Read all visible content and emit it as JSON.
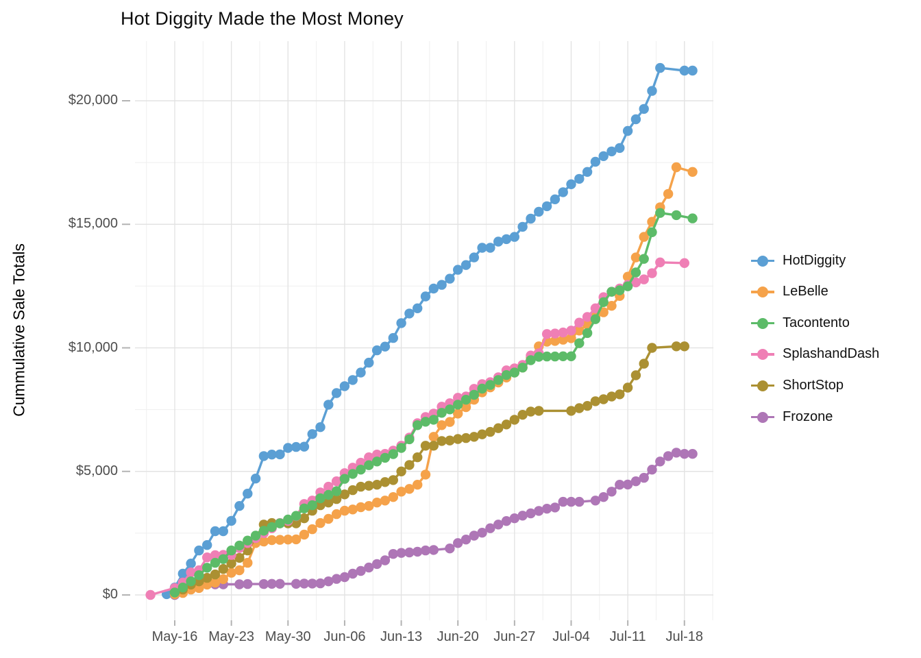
{
  "title": "Hot Diggity Made the Most Money",
  "y_axis": {
    "label": "Cummulative Sale Totals",
    "ticks": [
      {
        "label": "$0",
        "value": 0
      },
      {
        "label": "$5,000",
        "value": 5000
      },
      {
        "label": "$10,000",
        "value": 10000
      },
      {
        "label": "$15,000",
        "value": 15000
      },
      {
        "label": "$20,000",
        "value": 20000
      }
    ],
    "minor_values": [
      2500,
      7500,
      12500,
      17500
    ]
  },
  "x_axis": {
    "ticks": [
      {
        "label": "May-16",
        "day": 3
      },
      {
        "label": "May-23",
        "day": 10
      },
      {
        "label": "May-30",
        "day": 17
      },
      {
        "label": "Jun-06",
        "day": 24
      },
      {
        "label": "Jun-13",
        "day": 31
      },
      {
        "label": "Jun-20",
        "day": 38
      },
      {
        "label": "Jun-27",
        "day": 45
      },
      {
        "label": "Jul-04",
        "day": 52
      },
      {
        "label": "Jul-11",
        "day": 59
      },
      {
        "label": "Jul-18",
        "day": 66
      }
    ]
  },
  "chart_data": {
    "type": "line",
    "title": "Hot Diggity Made the Most Money",
    "xlabel": "",
    "ylabel": "Cummulative Sale Totals",
    "ylim": [
      0,
      21500
    ],
    "grid": true,
    "legend_position": "right",
    "date_labels": [
      "May-13",
      "May-14",
      "May-15",
      "May-16",
      "May-17",
      "May-18",
      "May-19",
      "May-20",
      "May-21",
      "May-22",
      "May-23",
      "May-24",
      "May-25",
      "May-26",
      "May-27",
      "May-28",
      "May-29",
      "May-30",
      "May-31",
      "Jun-01",
      "Jun-02",
      "Jun-03",
      "Jun-04",
      "Jun-05",
      "Jun-06",
      "Jun-07",
      "Jun-08",
      "Jun-09",
      "Jun-10",
      "Jun-11",
      "Jun-12",
      "Jun-13",
      "Jun-14",
      "Jun-15",
      "Jun-16",
      "Jun-17",
      "Jun-18",
      "Jun-19",
      "Jun-20",
      "Jun-21",
      "Jun-22",
      "Jun-23",
      "Jun-24",
      "Jun-25",
      "Jun-26",
      "Jun-27",
      "Jun-28",
      "Jun-29",
      "Jun-30",
      "Jul-01",
      "Jul-02",
      "Jul-03",
      "Jul-04",
      "Jul-05",
      "Jul-06",
      "Jul-07",
      "Jul-08",
      "Jul-09",
      "Jul-10",
      "Jul-11",
      "Jul-12",
      "Jul-13",
      "Jul-14",
      "Jul-15",
      "Jul-16",
      "Jul-17",
      "Jul-18",
      "Jul-19"
    ],
    "draw_order": [
      "Frozone",
      "HotDiggity",
      "LeBelle",
      "ShortStop",
      "SplashandDash",
      "Tacontento"
    ],
    "series": [
      {
        "name": "HotDiggity",
        "color": "#5B9FD4",
        "values": [
          null,
          null,
          30,
          300,
          860,
          1270,
          1800,
          2020,
          2580,
          2580,
          3000,
          3600,
          4100,
          4710,
          5620,
          5680,
          5690,
          5950,
          5990,
          6000,
          6510,
          6790,
          7700,
          8170,
          8450,
          8700,
          9000,
          9400,
          9900,
          10050,
          10400,
          11000,
          11390,
          11600,
          12080,
          12400,
          12550,
          12800,
          13160,
          13350,
          13660,
          14050,
          14050,
          14300,
          14400,
          14490,
          14900,
          15230,
          15510,
          15730,
          16010,
          16300,
          16620,
          16840,
          17120,
          17530,
          17760,
          17950,
          18090,
          18780,
          19250,
          19670,
          20400,
          21330,
          null,
          null,
          21220,
          21220
        ]
      },
      {
        "name": "LeBelle",
        "color": "#F5A24A",
        "values": [
          null,
          null,
          null,
          30,
          80,
          220,
          280,
          420,
          500,
          640,
          900,
          1000,
          1300,
          2100,
          2160,
          2220,
          2230,
          2240,
          2250,
          2440,
          2660,
          2910,
          3080,
          3270,
          3410,
          3460,
          3550,
          3600,
          3740,
          3820,
          3960,
          4180,
          4290,
          4460,
          4870,
          6400,
          6870,
          7000,
          7340,
          7600,
          7900,
          8200,
          8400,
          8600,
          8800,
          9000,
          9200,
          9600,
          10060,
          10250,
          10280,
          10330,
          10390,
          10700,
          10940,
          11250,
          11440,
          11700,
          12100,
          12880,
          13660,
          14490,
          15100,
          15690,
          16230,
          17310,
          null,
          17120
        ]
      },
      {
        "name": "Tacontento",
        "color": "#5CBB68",
        "values": [
          null,
          null,
          null,
          100,
          300,
          550,
          800,
          1100,
          1300,
          1450,
          1800,
          2000,
          2200,
          2400,
          2600,
          2750,
          2900,
          3050,
          3200,
          3500,
          3630,
          3910,
          4050,
          4200,
          4700,
          4900,
          5070,
          5250,
          5400,
          5550,
          5700,
          5950,
          6300,
          6870,
          7010,
          7090,
          7370,
          7510,
          7700,
          7900,
          8100,
          8350,
          8500,
          8700,
          8900,
          9000,
          9200,
          9500,
          9640,
          9650,
          9650,
          9660,
          9660,
          10190,
          10600,
          11160,
          11850,
          12270,
          12330,
          12490,
          13050,
          13600,
          14680,
          15460,
          null,
          15370,
          null,
          15240
        ]
      },
      {
        "name": "SplashandDash",
        "color": "#EF7FB5",
        "values": [
          0,
          null,
          null,
          280,
          500,
          910,
          1000,
          1520,
          1610,
          1620,
          1620,
          1900,
          2100,
          2300,
          2500,
          2700,
          2910,
          3000,
          3190,
          3680,
          3820,
          4150,
          4380,
          4600,
          4930,
          5150,
          5350,
          5570,
          5680,
          5710,
          5840,
          6040,
          6370,
          6950,
          7200,
          7340,
          7620,
          7760,
          7980,
          8030,
          8340,
          8530,
          8610,
          8810,
          9090,
          9170,
          9310,
          9690,
          9780,
          10560,
          10580,
          10620,
          10700,
          11020,
          11250,
          11600,
          12050,
          12270,
          12400,
          12550,
          12650,
          12770,
          13020,
          13460,
          null,
          null,
          13430,
          null
        ]
      },
      {
        "name": "ShortStop",
        "color": "#AB9032",
        "values": [
          null,
          null,
          null,
          140,
          220,
          420,
          550,
          690,
          830,
          1050,
          1270,
          1500,
          1800,
          2300,
          2850,
          2910,
          2900,
          2900,
          2900,
          3100,
          3410,
          3630,
          3740,
          3880,
          4070,
          4240,
          4380,
          4420,
          4460,
          4570,
          4650,
          5000,
          5260,
          5570,
          6040,
          6040,
          6230,
          6250,
          6310,
          6350,
          6400,
          6500,
          6600,
          6750,
          6900,
          7090,
          7290,
          7420,
          7450,
          null,
          null,
          null,
          7450,
          7560,
          7650,
          7840,
          7920,
          8030,
          8120,
          8390,
          8890,
          9360,
          10000,
          null,
          null,
          10060,
          10060,
          null
        ]
      },
      {
        "name": "Frozone",
        "color": "#AE76B6",
        "values": [
          null,
          null,
          null,
          0,
          150,
          300,
          400,
          430,
          430,
          430,
          null,
          430,
          440,
          null,
          440,
          450,
          450,
          null,
          450,
          460,
          460,
          470,
          550,
          650,
          720,
          860,
          970,
          1110,
          1250,
          1400,
          1660,
          1700,
          1720,
          1750,
          1800,
          1820,
          null,
          1880,
          2100,
          2240,
          2400,
          2520,
          2700,
          2850,
          2990,
          3100,
          3210,
          3300,
          3400,
          3490,
          3540,
          3770,
          3770,
          3770,
          null,
          3820,
          3960,
          4180,
          4460,
          4470,
          4600,
          4740,
          5070,
          5400,
          5620,
          5760,
          5710,
          5710
        ]
      }
    ]
  },
  "style": {
    "grid_major_color": "#e3e3e3",
    "grid_minor_color": "#efefef",
    "tick_mark_color": "#b3b3b3",
    "axis_text_color": "#4d4d4d"
  }
}
